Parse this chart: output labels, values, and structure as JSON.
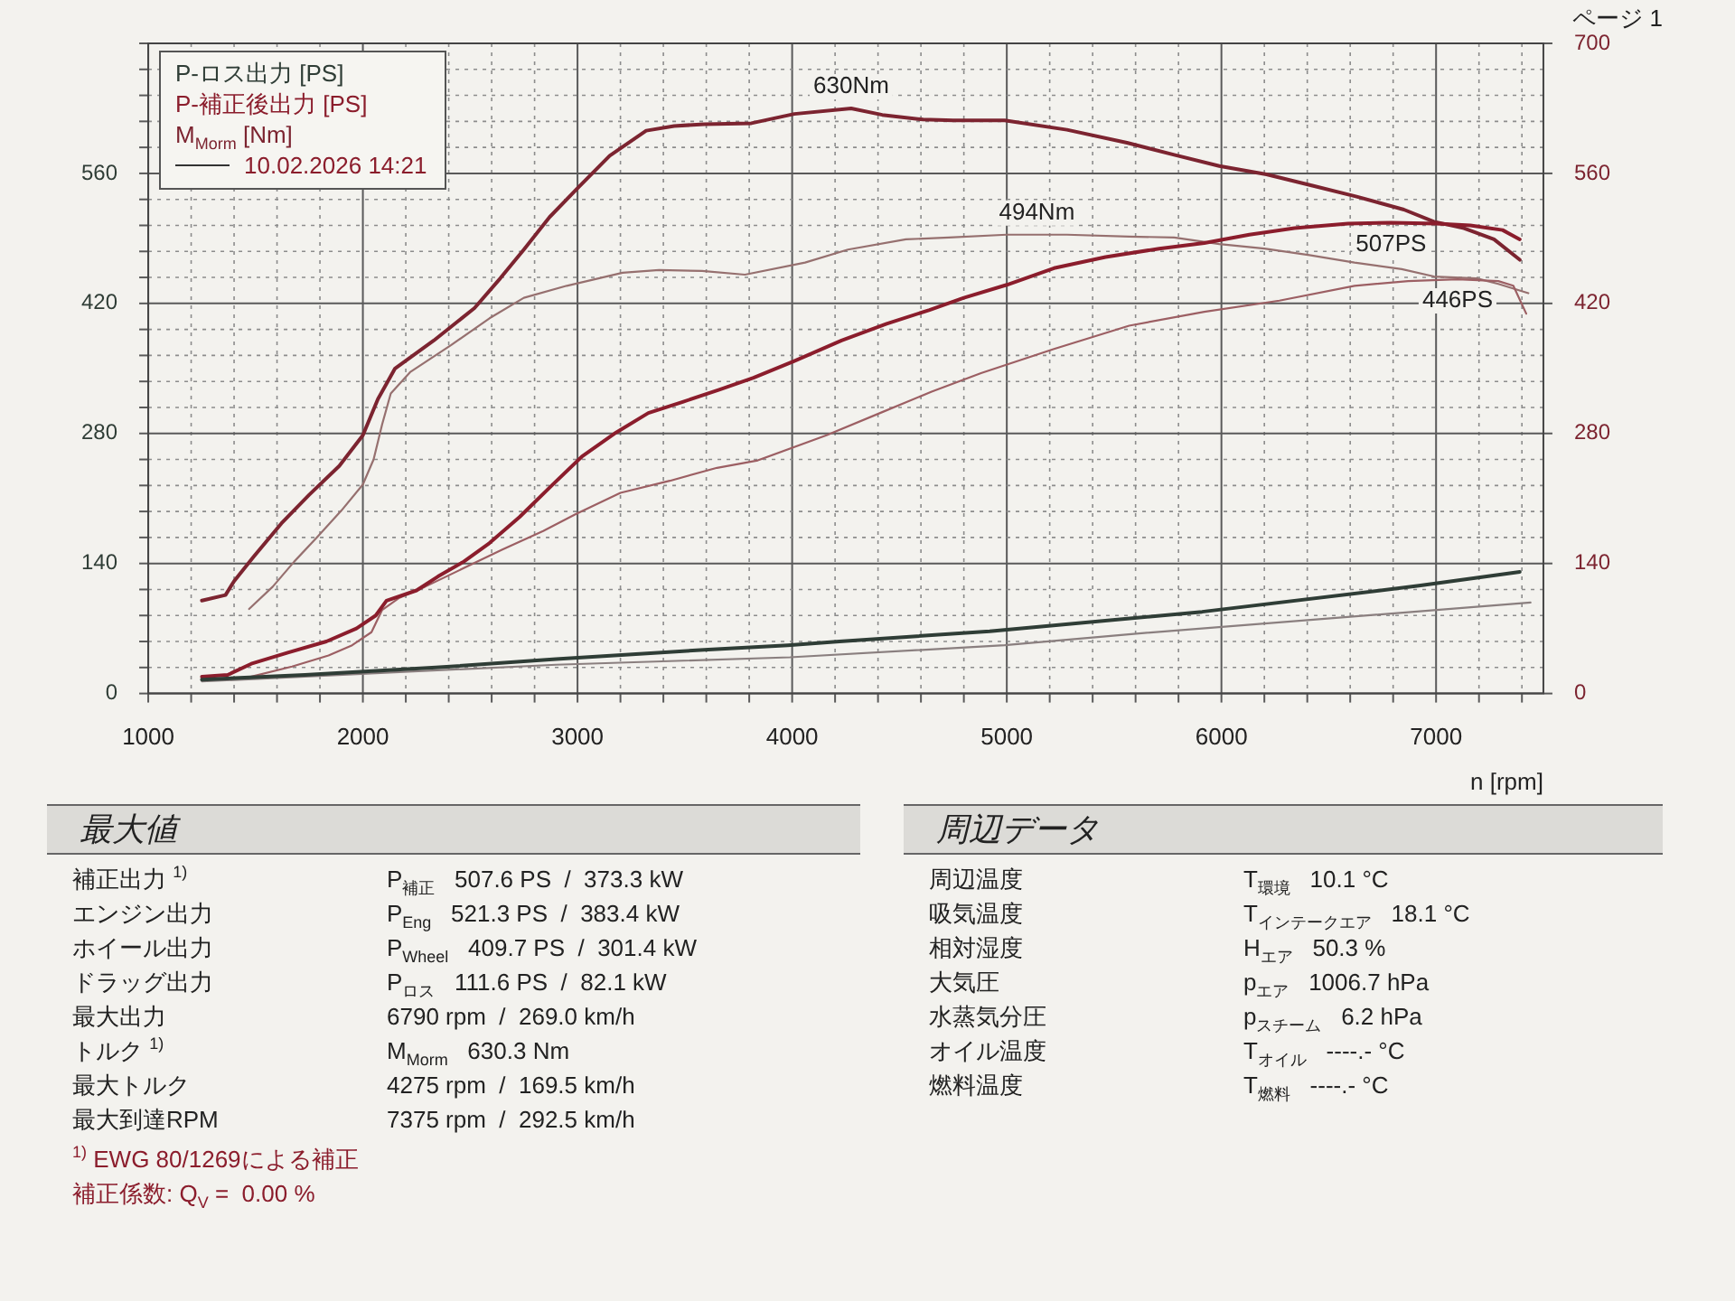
{
  "chart_data": [
    {
      "type": "line",
      "xlabel": "n [rpm]",
      "legend": "top left",
      "legend_title": "10.02.2026 14:21",
      "grid": true,
      "xlim": [
        1000,
        7500
      ],
      "xticks": [
        1000,
        {
          "value": 1200,
          "label": null
        },
        {
          "value": 1400,
          "label": null
        },
        {
          "value": 1600,
          "label": null
        },
        {
          "value": 1800,
          "label": null
        },
        2000,
        {
          "value": 2200,
          "label": null
        },
        {
          "value": 2400,
          "label": null
        },
        {
          "value": 2600,
          "label": null
        },
        {
          "value": 2800,
          "label": null
        },
        3000,
        {
          "value": 3200,
          "label": null
        },
        {
          "value": 3400,
          "label": null
        },
        {
          "value": 3600,
          "label": null
        },
        {
          "value": 3800,
          "label": null
        },
        4000,
        {
          "value": 4200,
          "label": null
        },
        {
          "value": 4400,
          "label": null
        },
        {
          "value": 4600,
          "label": null
        },
        {
          "value": 4800,
          "label": null
        },
        5000,
        {
          "value": 5200,
          "label": null
        },
        {
          "value": 5400,
          "label": null
        },
        {
          "value": 5600,
          "label": null
        },
        {
          "value": 5800,
          "label": null
        },
        6000,
        {
          "value": 6200,
          "label": null
        },
        {
          "value": 6400,
          "label": null
        },
        {
          "value": 6600,
          "label": null
        },
        {
          "value": 6800,
          "label": null
        },
        7000,
        {
          "value": 7200,
          "label": null
        },
        {
          "value": 7400,
          "label": null
        }
      ],
      "ylim": [
        0,
        700
      ],
      "yticks": [
        0,
        {
          "value": 28,
          "label": null
        },
        {
          "value": 56,
          "label": null
        },
        {
          "value": 84,
          "label": null
        },
        {
          "value": 112,
          "label": null
        },
        140,
        {
          "value": 168,
          "label": null
        },
        {
          "value": 196,
          "label": null
        },
        {
          "value": 224,
          "label": null
        },
        {
          "value": 252,
          "label": null
        },
        280,
        {
          "value": 308,
          "label": null
        },
        {
          "value": 336,
          "label": null
        },
        {
          "value": 364,
          "label": null
        },
        {
          "value": 392,
          "label": null
        },
        420,
        {
          "value": 448,
          "label": null
        },
        {
          "value": 476,
          "label": null
        },
        {
          "value": 504,
          "label": null
        },
        {
          "value": 532,
          "label": null
        },
        560,
        {
          "value": 588,
          "label": null
        },
        {
          "value": 616,
          "label": null
        },
        {
          "value": 644,
          "label": null
        },
        {
          "value": 672,
          "label": null
        },
        {
          "value": 700,
          "label": null
        }
      ],
      "y2lim": [
        0,
        700
      ],
      "y2ticks": [
        0,
        140,
        280,
        420,
        560,
        700
      ],
      "series": [
        {
          "name": "P-ロス出力 [PS]",
          "color": "#2f3d36",
          "x": [
            1250,
            1730,
            2340,
            2900,
            3590,
            3980,
            4220,
            4920,
            5910,
            6920,
            7390
          ],
          "values": [
            15,
            20,
            28,
            37,
            47,
            52,
            56,
            67,
            88,
            116,
            131
          ]
        },
        {
          "color": "#8a7f7f",
          "x": [
            1250,
            2900,
            3990,
            4990,
            5580,
            7440
          ],
          "values": [
            13,
            31,
            39,
            52,
            64,
            98
          ]
        },
        {
          "name": "P-補正後出力 [PS]",
          "color": "#8b1d2c",
          "x": [
            1250,
            1370,
            1480,
            1650,
            1830,
            1970,
            2060,
            2110,
            2250,
            2350,
            2470,
            2590,
            2730,
            2880,
            3020,
            3180,
            3330,
            3490,
            3660,
            3820,
            4010,
            4230,
            4440,
            4640,
            4800,
            5000,
            5220,
            5460,
            5710,
            5920,
            6130,
            6340,
            6590,
            6790,
            7000,
            7160,
            7310,
            7390
          ],
          "values": [
            18,
            20,
            32,
            44,
            56,
            70,
            84,
            100,
            111,
            126,
            142,
            162,
            190,
            224,
            255,
            281,
            302,
            314,
            327,
            340,
            358,
            380,
            398,
            413,
            426,
            440,
            458,
            470,
            479,
            485,
            494,
            501,
            506,
            507,
            506,
            504,
            499,
            489
          ]
        },
        {
          "color": "#9c5f63",
          "x": [
            1460,
            1670,
            1840,
            1950,
            2040,
            2090,
            2170,
            2290,
            2470,
            2650,
            2840,
            2990,
            3200,
            3430,
            3650,
            3840,
            4160,
            4420,
            4650,
            4880,
            5220,
            5570,
            5920,
            6270,
            6620,
            6870,
            7100,
            7290,
            7360,
            7420
          ],
          "values": [
            17,
            29,
            41,
            52,
            66,
            90,
            103,
            115,
            135,
            155,
            175,
            193,
            216,
            229,
            243,
            251,
            278,
            303,
            325,
            345,
            371,
            396,
            411,
            423,
            439,
            444,
            446,
            444,
            439,
            409
          ]
        },
        {
          "name": "M$_{Morm}$ [Nm]",
          "color": "#7c2430",
          "axis": "y2",
          "x": [
            1250,
            1360,
            1400,
            1490,
            1620,
            1750,
            1890,
            2000,
            2070,
            2150,
            2330,
            2520,
            2640,
            2750,
            2870,
            3000,
            3150,
            3320,
            3450,
            3590,
            3810,
            4010,
            4275,
            4420,
            4610,
            4750,
            4990,
            5280,
            5560,
            5780,
            5990,
            6210,
            6420,
            6630,
            6850,
            6990,
            7130,
            7270,
            7390
          ],
          "values": [
            100,
            106,
            121,
            147,
            183,
            214,
            245,
            278,
            317,
            350,
            380,
            415,
            447,
            478,
            513,
            544,
            579,
            606,
            611,
            613,
            614,
            624,
            630,
            623,
            618,
            617,
            617,
            607,
            593,
            580,
            568,
            559,
            547,
            535,
            521,
            508,
            501,
            489,
            467
          ]
        },
        {
          "color": "#96706f",
          "axis": "y2",
          "x": [
            1470,
            1580,
            1680,
            1790,
            1900,
            2000,
            2050,
            2090,
            2130,
            2220,
            2410,
            2590,
            2750,
            2950,
            3210,
            3380,
            3580,
            3780,
            4060,
            4260,
            4530,
            4730,
            5000,
            5280,
            5570,
            5780,
            5990,
            6200,
            6410,
            6620,
            6840,
            6990,
            7190,
            7290,
            7430
          ],
          "values": [
            91,
            115,
            142,
            169,
            197,
            225,
            252,
            290,
            323,
            346,
            375,
            404,
            426,
            439,
            453,
            456,
            455,
            451,
            464,
            478,
            489,
            491,
            494,
            494,
            492,
            491,
            484,
            479,
            472,
            464,
            457,
            449,
            447,
            441,
            431
          ]
        }
      ],
      "annotations": [
        {
          "text": "630Nm",
          "x": 4275,
          "y": 630
        },
        {
          "text": "494Nm",
          "x": 5140,
          "y": 494
        },
        {
          "text": "507PS",
          "x": 6790,
          "y": 507
        },
        {
          "text": "446PS",
          "x": 7100,
          "y": 446
        },
        "ページ 1"
      ]
    },
    {
      "type": "other",
      "title": "最大値",
      "annotations": [
        "補正出力 $^{1)}$",
        "P$_{補正}$   507.6 PS  /  373.3 kW",
        "エンジン出力",
        "P$_{Eng}$   521.3 PS  /  383.4 kW",
        "ホイール出力",
        "P$_{Wheel}$   409.7 PS  /  301.4 kW",
        "ドラッグ出力",
        "P$_{ロス}$   111.6 PS  /  82.1 kW",
        "最大出力",
        "6790 rpm  /  269.0 km/h",
        "トルク $^{1)}$",
        "M$_{Morm}$   630.3 Nm",
        "最大トルク",
        "4275 rpm  /  169.5 km/h",
        "最大到達RPM",
        "7375 rpm  /  292.5 km/h"
      ]
    },
    {
      "type": "other",
      "annotations": [
        "$^{1)}$ EWG 80/1269による補正",
        "補正係数: Q$_{V}$ =  0.00 %"
      ]
    },
    {
      "type": "other",
      "title": "周辺データ",
      "annotations": [
        "周辺温度",
        "T$_{環境}$   10.1 °C",
        "吸気温度",
        "T$_{インテークエア}$   18.1 °C",
        "相対湿度",
        "H$_{エア}$   50.3 %",
        "大気圧",
        "p$_{エア}$   1006.7 hPa",
        "水蒸気分圧",
        "p$_{スチーム}$   6.2 hPa",
        "オイル温度",
        "T$_{オイル}$   ----.- °C",
        "燃料温度",
        "T$_{燃料}$   ----.- °C"
      ]
    }
  ]
}
